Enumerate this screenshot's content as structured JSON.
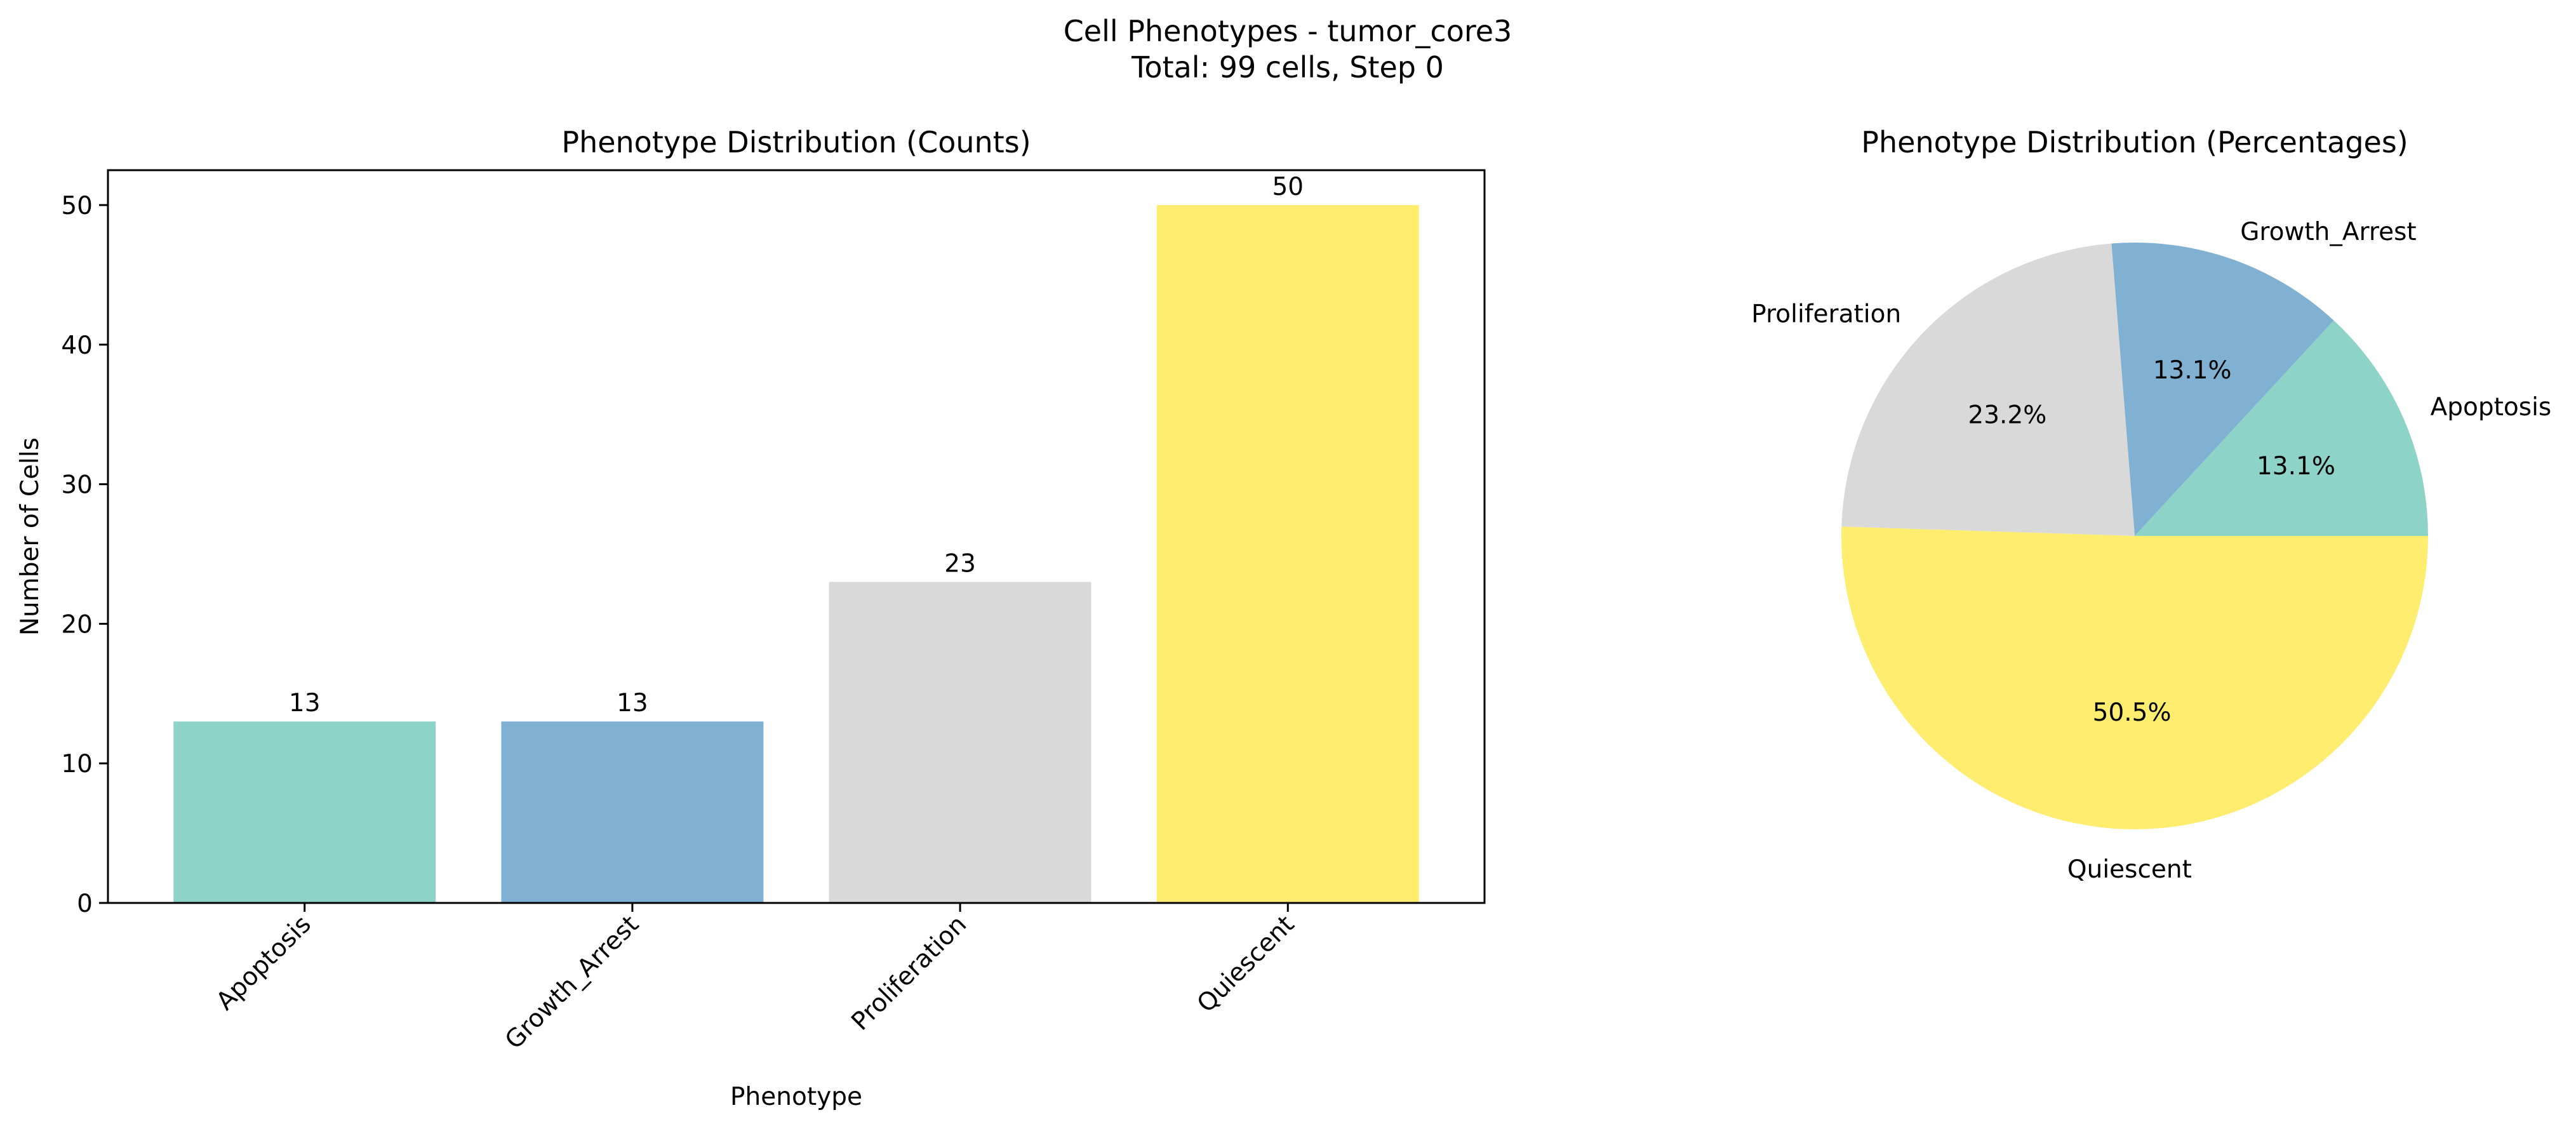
{
  "figure": {
    "title_line1": "Cell Phenotypes - tumor_core3",
    "title_line2": "Total: 99 cells, Step 0"
  },
  "colors": {
    "Apoptosis": "#8dd3c7",
    "Growth_Arrest": "#80b1d3",
    "Proliferation": "#d9d9d9",
    "Quiescent": "#ffed6f"
  },
  "chart_data": [
    {
      "type": "bar",
      "title": "Phenotype Distribution (Counts)",
      "xlabel": "Phenotype",
      "ylabel": "Number of Cells",
      "categories": [
        "Apoptosis",
        "Growth_Arrest",
        "Proliferation",
        "Quiescent"
      ],
      "values": [
        13,
        13,
        23,
        50
      ],
      "data_labels": [
        "13",
        "13",
        "23",
        "50"
      ],
      "ylim": [
        0,
        52.5
      ],
      "yticks": [
        0,
        10,
        20,
        30,
        40,
        50
      ],
      "grid": false,
      "legend": "none"
    },
    {
      "type": "pie",
      "title": "Phenotype Distribution (Percentages)",
      "labels": [
        "Apoptosis",
        "Growth_Arrest",
        "Proliferation",
        "Quiescent"
      ],
      "values": [
        13,
        13,
        23,
        50
      ],
      "percent_labels": [
        "13.1%",
        "13.1%",
        "23.2%",
        "50.5%"
      ],
      "start_angle_deg": 0,
      "direction": "counterclockwise",
      "legend": "none"
    }
  ]
}
